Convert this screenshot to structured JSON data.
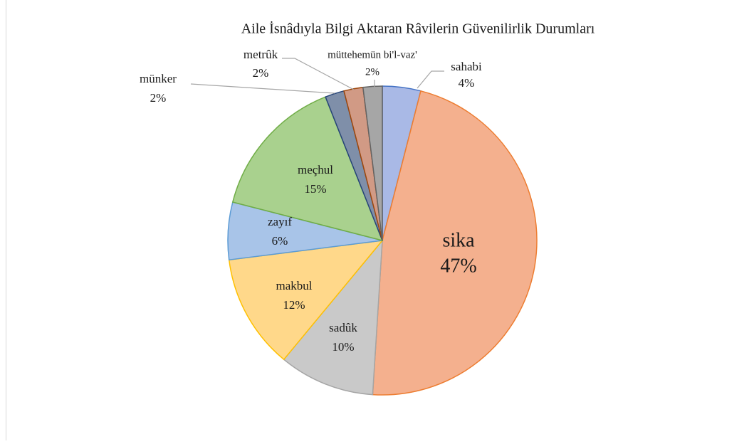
{
  "chart_data": {
    "type": "pie",
    "title": "Aile İsnâdıyla Bilgi Aktaran Râvilerin Güvenilirlik Durumları",
    "categories": [
      "sahabi",
      "sika",
      "sadûk",
      "makbul",
      "zayıf",
      "meçhul",
      "münker",
      "metrûk",
      "müttehemün bi'l-vaz'"
    ],
    "values": [
      4,
      47,
      10,
      12,
      6,
      15,
      2,
      2,
      2
    ],
    "value_labels": [
      "4%",
      "47%",
      "10%",
      "12%",
      "6%",
      "15%",
      "2%",
      "2%",
      "2%"
    ],
    "colors": [
      "#a9b9e6",
      "#f4b08e",
      "#c9c9c9",
      "#ffd88a",
      "#a8c4e8",
      "#a9d18e",
      "#7f8fa9",
      "#d19a85",
      "#a6a6a6"
    ],
    "stroke_colors": [
      "#4472c4",
      "#ed7d31",
      "#a5a5a5",
      "#ffc000",
      "#5b9bd5",
      "#70ad47",
      "#264478",
      "#9e480e",
      "#636363"
    ]
  }
}
